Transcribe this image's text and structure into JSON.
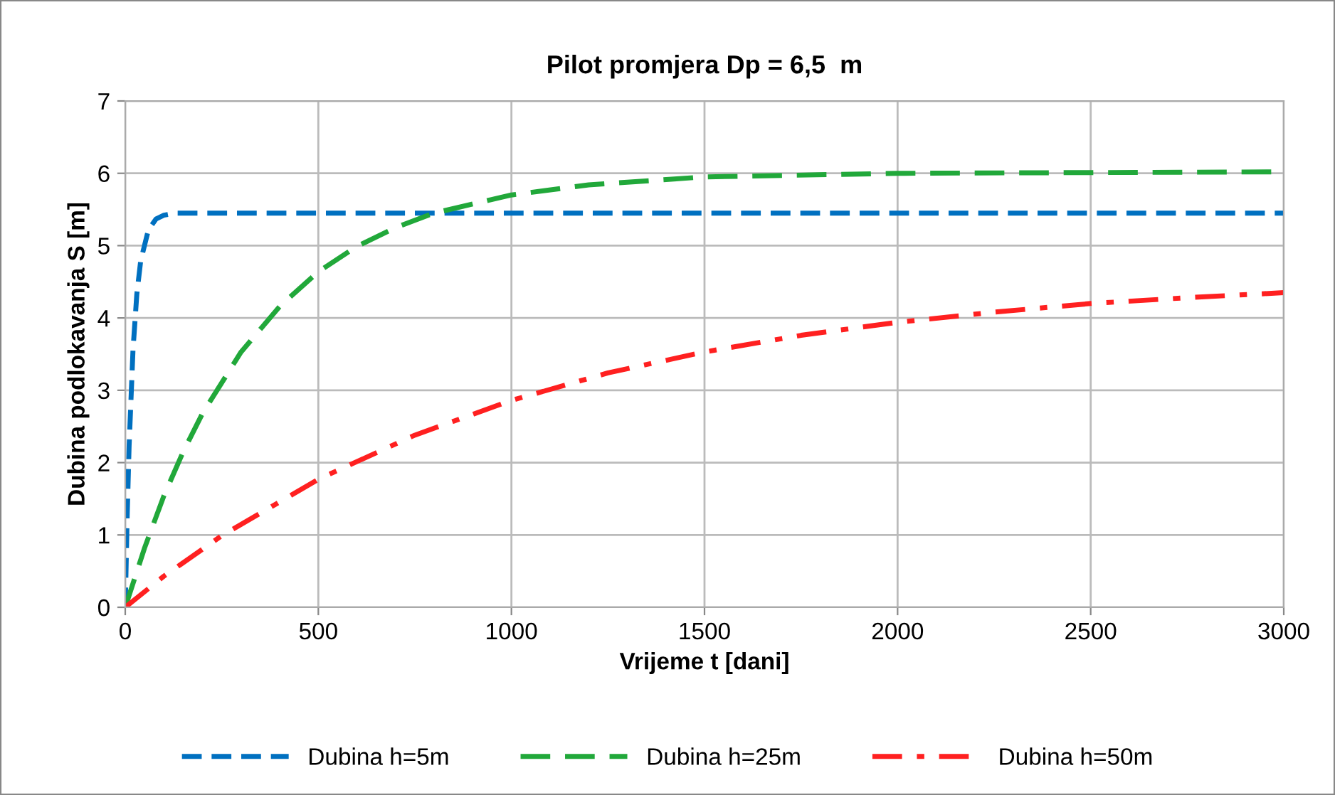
{
  "chart_data": {
    "type": "line",
    "title": "Pilot promjera Dp = 6,5  m",
    "xlabel": "Vrijeme t [dani]",
    "ylabel": "Dubina podlokavanja S [m]",
    "xlim": [
      0,
      3000
    ],
    "xticks": [
      0,
      500,
      1000,
      1500,
      2000,
      2500,
      3000
    ],
    "ylim": [
      0,
      7
    ],
    "yticks": [
      0,
      1,
      2,
      3,
      4,
      5,
      6,
      7
    ],
    "grid": true,
    "legend": "bottom",
    "series": [
      {
        "name": "Dubina h=5m",
        "color": "#0070c0",
        "line_style": "dashed",
        "x": [
          0,
          5,
          10,
          20,
          30,
          40,
          60,
          80,
          100,
          130,
          200,
          3000
        ],
        "values": [
          0,
          1.26,
          2.23,
          3.55,
          4.33,
          4.79,
          5.22,
          5.37,
          5.42,
          5.45,
          5.45,
          5.45
        ]
      },
      {
        "name": "Dubina h=25m",
        "color": "#21a83a",
        "line_style": "dashed",
        "x": [
          0,
          50,
          100,
          150,
          200,
          300,
          400,
          500,
          600,
          700,
          800,
          1000,
          1200,
          1500,
          2000,
          2500,
          3000
        ],
        "values": [
          0,
          0.82,
          1.54,
          2.15,
          2.68,
          3.53,
          4.16,
          4.64,
          4.99,
          5.25,
          5.45,
          5.7,
          5.84,
          5.95,
          6.0,
          6.01,
          6.02
        ]
      },
      {
        "name": "Dubina h=50m",
        "color": "#ff2020",
        "line_style": "dashdot",
        "x": [
          0,
          100,
          250,
          500,
          750,
          1000,
          1250,
          1500,
          1750,
          2000,
          2250,
          2500,
          2750,
          3000
        ],
        "values": [
          0,
          0.43,
          0.99,
          1.77,
          2.38,
          2.86,
          3.24,
          3.53,
          3.76,
          3.94,
          4.08,
          4.2,
          4.28,
          4.35
        ]
      }
    ]
  }
}
